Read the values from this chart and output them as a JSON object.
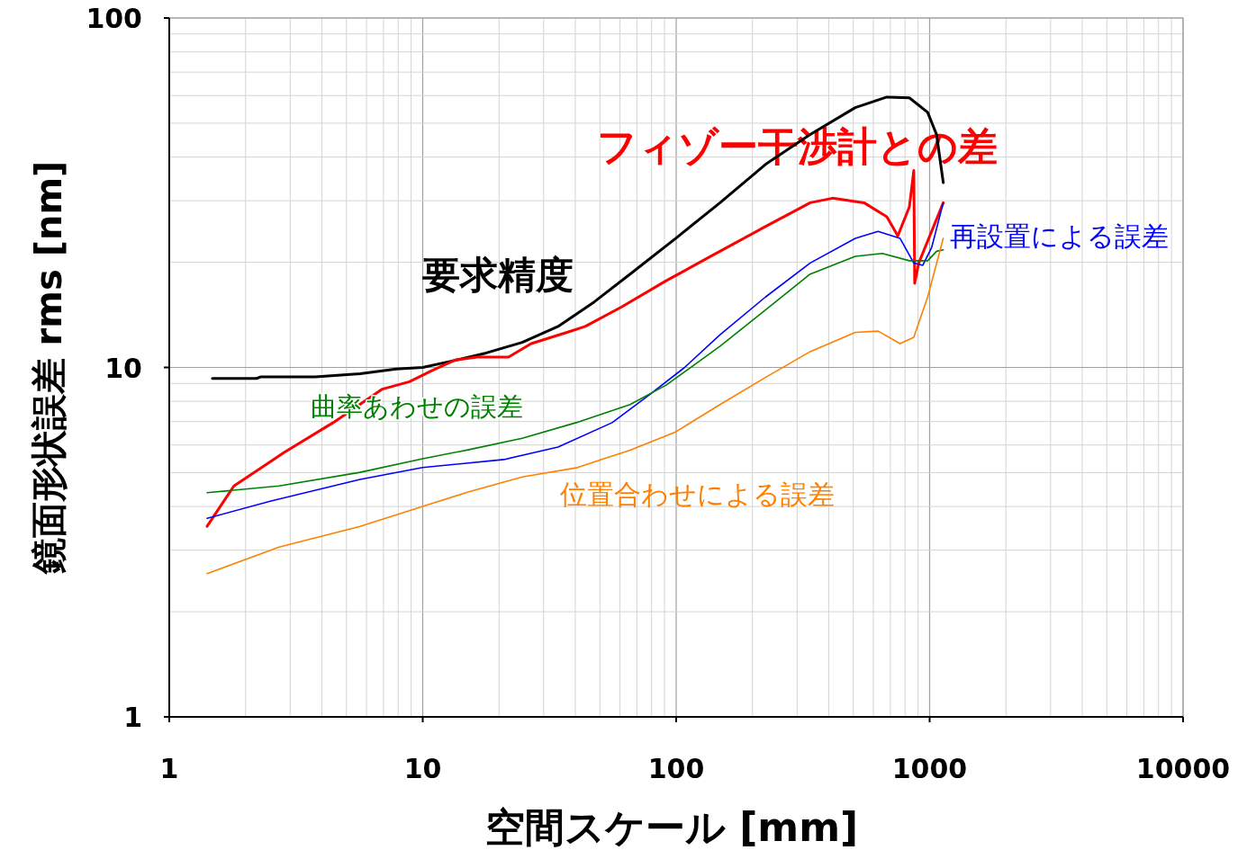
{
  "chart_data": {
    "type": "line",
    "xlabel": "空間スケール [mm]",
    "ylabel": "鏡面形状誤差 rms [nm]",
    "log": "xy",
    "grid": true,
    "xlim": [
      1,
      10000
    ],
    "ylim": [
      1,
      100
    ],
    "xticks": [
      1,
      10,
      100,
      1000,
      10000
    ],
    "yticks": [
      1,
      10,
      100
    ],
    "marker": "none",
    "line_style": "solid",
    "series": [
      {
        "name": "要求精度",
        "color": "#000000",
        "x": [
          1.48,
          2.21,
          2.3,
          3.76,
          5.66,
          7.85,
          10,
          12.8,
          17.8,
          24.7,
          34.2,
          47.5,
          65.8,
          99.5,
          149,
          225,
          338,
          509,
          678,
          832,
          982,
          1065,
          1132
        ],
        "values": [
          9.3,
          9.3,
          9.4,
          9.4,
          9.6,
          9.9,
          10,
          10.4,
          11.0,
          11.8,
          13.1,
          15.4,
          18.5,
          23.4,
          29.6,
          38.1,
          46.4,
          55.4,
          59.4,
          59.1,
          53.7,
          46.4,
          33.8
        ]
      },
      {
        "name": "フィゾー干渉計との差",
        "color": "#ff0000",
        "x": [
          1.41,
          1.8,
          2.83,
          4.43,
          6.93,
          8.86,
          10.9,
          13.4,
          16.4,
          21.8,
          26.8,
          37.1,
          43.8,
          60.9,
          91.3,
          137,
          225,
          338,
          414,
          551,
          678,
          749,
          832,
          866,
          873,
          906,
          1132
        ],
        "values": [
          3.51,
          4.58,
          5.7,
          6.95,
          8.67,
          9.1,
          9.8,
          10.5,
          10.7,
          10.7,
          11.7,
          12.6,
          13.1,
          14.9,
          17.7,
          20.8,
          25.3,
          29.6,
          30.5,
          29.6,
          27.0,
          23.8,
          28.8,
          36.6,
          17.4,
          19.9,
          29.6
        ]
      },
      {
        "name": "再設置による誤差",
        "color": "#0000ff",
        "x": [
          1.41,
          2.5,
          5.66,
          10,
          20.9,
          34.2,
          55.9,
          77.6,
          108,
          149,
          225,
          338,
          509,
          626,
          765,
          866,
          940,
          1018,
          1132
        ],
        "values": [
          3.7,
          4.14,
          4.78,
          5.17,
          5.45,
          5.92,
          6.95,
          8.3,
          10.0,
          12.4,
          15.9,
          19.9,
          23.4,
          24.5,
          23.4,
          19.9,
          19.6,
          22.0,
          29.6
        ]
      },
      {
        "name": "曲率あわせの誤差",
        "color": "#008000",
        "x": [
          1.41,
          2.71,
          5.66,
          10,
          15.1,
          24.7,
          40.3,
          65.8,
          91.3,
          149,
          225,
          338,
          509,
          651,
          832,
          982,
          1065,
          1132
        ],
        "values": [
          4.38,
          4.58,
          5.01,
          5.48,
          5.81,
          6.27,
          6.95,
          7.83,
          8.9,
          11.5,
          14.6,
          18.5,
          20.8,
          21.2,
          20.2,
          20.2,
          21.5,
          21.7
        ]
      },
      {
        "name": "位置合わせによる誤差",
        "color": "#ff8000",
        "x": [
          1.41,
          2.71,
          5.66,
          10,
          15.1,
          24.7,
          40.3,
          65.8,
          99.5,
          149,
          225,
          338,
          509,
          626,
          765,
          866,
          982,
          1132
        ],
        "values": [
          2.57,
          3.06,
          3.51,
          4.0,
          4.4,
          4.86,
          5.16,
          5.8,
          6.54,
          7.83,
          9.36,
          11.1,
          12.6,
          12.7,
          11.7,
          12.2,
          15.9,
          23.4
        ]
      }
    ]
  }
}
